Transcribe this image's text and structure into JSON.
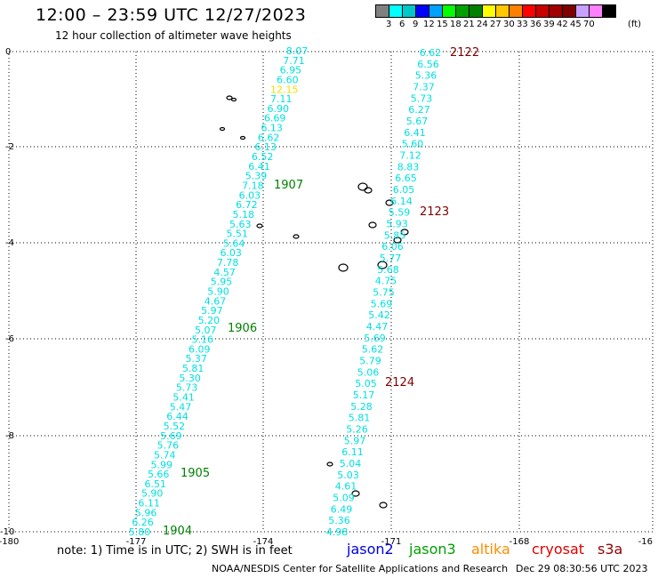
{
  "title": "12:00 – 23:59 UTC 12/27/2023",
  "subtitle": "12 hour collection of altimeter wave heights",
  "legend": {
    "unit": "(ft)",
    "colors": [
      "#808080",
      "#00ffff",
      "#00c8c8",
      "#0000ff",
      "#00a0ff",
      "#00ff00",
      "#00a000",
      "#008000",
      "#ffff00",
      "#ffc800",
      "#ff8000",
      "#ff0000",
      "#c80000",
      "#a00000",
      "#800000",
      "#c8a0ff",
      "#ff80ff",
      "#000000"
    ],
    "labels": [
      "3",
      "6",
      "9",
      "12",
      "15",
      "18",
      "21",
      "24",
      "27",
      "30",
      "33",
      "36",
      "39",
      "42",
      "45",
      "70"
    ]
  },
  "axes": {
    "y_labels": [
      "0",
      "-2",
      "-4",
      "-6",
      "-8",
      "-10"
    ],
    "x_labels": [
      "-180",
      "-177",
      "-174",
      "-171",
      "-168",
      "-16"
    ]
  },
  "tracks": [
    {
      "label_color": "#00e0e0",
      "values": [
        "8.07",
        "7.71",
        "6.95",
        "6.60",
        "12.15",
        "7.11",
        "6.90",
        "6.69",
        "6.13",
        "6.62",
        "6.13",
        "6.52",
        "6.41",
        "5.39",
        "7.18",
        "6.03",
        "6.72",
        "5.18",
        "5.63",
        "5.51",
        "5.64",
        "6.03",
        "7.78",
        "4.57",
        "5.95",
        "5.90",
        "4.67",
        "5.97",
        "5.20",
        "5.07",
        "5.16",
        "6.09",
        "5.37",
        "5.81",
        "5.30",
        "5.73",
        "5.41",
        "5.47",
        "6.44",
        "5.52",
        "5.69",
        "5.76",
        "5.74",
        "5.99",
        "5.66",
        "6.51",
        "5.90",
        "6.11",
        "5.96",
        "6.26",
        "5.80"
      ],
      "highlight_index": 4,
      "highlight_color": "#f0e000"
    },
    {
      "label_color": "#00e0e0",
      "values": [
        "6.62",
        "6.56",
        "5.36",
        "7.37",
        "5.73",
        "6.27",
        "5.67",
        "6.41",
        "5.60",
        "7.12",
        "8.83",
        "6.65",
        "6.05",
        "6.14",
        "5.59",
        "5.93",
        "5.85",
        "6.06",
        "5.77",
        "5.68",
        "4.75",
        "5.75",
        "5.69",
        "5.42",
        "4.47",
        "5.69",
        "5.62",
        "5.79",
        "5.06",
        "5.05",
        "5.17",
        "5.28",
        "5.81",
        "5.26",
        "5.97",
        "6.11",
        "5.04",
        "5.03",
        "4.61",
        "5.09",
        "6.49",
        "5.36",
        "4.98"
      ],
      "highlight_index": -1,
      "highlight_color": "#00e0e0"
    }
  ],
  "time_labels": [
    {
      "text": "1907",
      "color": "#008000"
    },
    {
      "text": "1906",
      "color": "#008000"
    },
    {
      "text": "1905",
      "color": "#008000"
    },
    {
      "text": "1904",
      "color": "#008000"
    },
    {
      "text": "2122",
      "color": "#800000"
    },
    {
      "text": "2123",
      "color": "#800000"
    },
    {
      "text": "2124",
      "color": "#800000"
    }
  ],
  "note": "note:  1) Time is in UTC; 2) SWH is in feet",
  "satellites": [
    {
      "name": "jason2",
      "color": "#0000e0"
    },
    {
      "name": "jason3",
      "color": "#00a000"
    },
    {
      "name": "altika",
      "color": "#ff8c00"
    },
    {
      "name": "cryosat",
      "color": "#e00000"
    },
    {
      "name": "s3a",
      "color": "#900000"
    }
  ],
  "footer": {
    "center": "NOAA/NESDIS Center for Satellite Applications and Research",
    "timestamp": "Dec 29 08:30:56 UTC 2023"
  }
}
